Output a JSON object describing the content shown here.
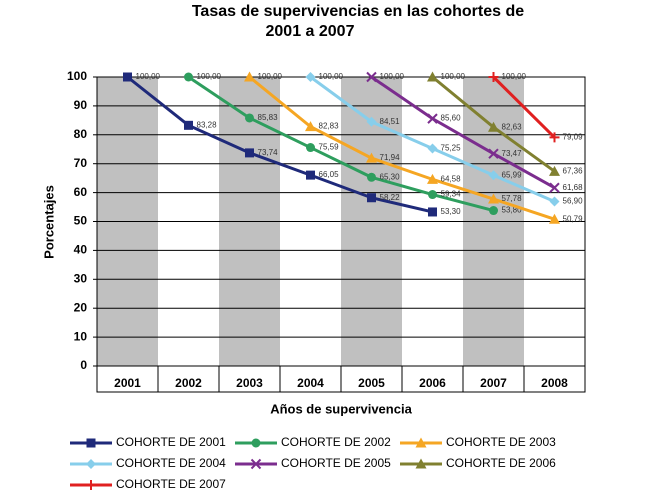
{
  "chart_data": {
    "type": "line",
    "title": [
      "Tasas de supervivencias en las cohortes de",
      "2001 a 2007"
    ],
    "xlabel": "Años de supervivencia",
    "ylabel": "Porcentajes",
    "categories": [
      "2001",
      "2002",
      "2003",
      "2004",
      "2005",
      "2006",
      "2007",
      "2008"
    ],
    "ylim": [
      0,
      100
    ],
    "yticks": [
      0,
      10,
      20,
      30,
      40,
      50,
      60,
      70,
      80,
      90,
      100
    ],
    "grid": true,
    "legend": "bottom",
    "series": [
      {
        "name": "COHORTE DE 2001",
        "color": "#1f2a7a",
        "marker": "square",
        "values": [
          100,
          83.28,
          73.74,
          66.05,
          58.22,
          53.3,
          null,
          null
        ],
        "value_labels": [
          "100,00",
          "83,28",
          "73,74",
          "66,05",
          "58,22",
          "53,30",
          null,
          null
        ]
      },
      {
        "name": "COHORTE DE 2002",
        "color": "#2e9e5e",
        "marker": "circle",
        "values": [
          null,
          100,
          85.83,
          75.59,
          65.3,
          59.34,
          53.8,
          null
        ],
        "value_labels": [
          null,
          "100,00",
          "85,83",
          "75,59",
          "65,30",
          "59,34",
          "53,80",
          null
        ]
      },
      {
        "name": "COHORTE DE 2003",
        "color": "#f5a623",
        "marker": "triangle",
        "values": [
          null,
          null,
          100,
          82.83,
          71.94,
          64.58,
          57.78,
          50.79
        ],
        "value_labels": [
          null,
          null,
          "100,00",
          "82,83",
          "71,94",
          "64,58",
          "57,78",
          "50,79"
        ]
      },
      {
        "name": "COHORTE DE 2004",
        "color": "#87ceeb",
        "marker": "diamond",
        "values": [
          null,
          null,
          null,
          100,
          84.51,
          75.25,
          65.99,
          56.9
        ],
        "value_labels": [
          null,
          null,
          null,
          "100,00",
          "84,51",
          "75,25",
          "65,99",
          "56,90"
        ]
      },
      {
        "name": "COHORTE DE 2005",
        "color": "#7b2d8e",
        "marker": "x",
        "values": [
          null,
          null,
          null,
          null,
          100,
          85.6,
          73.47,
          61.68
        ],
        "value_labels": [
          null,
          null,
          null,
          null,
          "100,00",
          "85,60",
          "73,47",
          "61,68"
        ]
      },
      {
        "name": "COHORTE DE 2006",
        "color": "#808030",
        "marker": "triangle",
        "values": [
          null,
          null,
          null,
          null,
          null,
          100,
          82.63,
          67.36
        ],
        "value_labels": [
          null,
          null,
          null,
          null,
          null,
          "100,00",
          "82,63",
          "67,36"
        ]
      },
      {
        "name": "COHORTE DE 2007",
        "color": "#e02020",
        "marker": "plus",
        "values": [
          null,
          null,
          null,
          null,
          null,
          null,
          100,
          79.09
        ],
        "value_labels": [
          null,
          null,
          null,
          null,
          null,
          null,
          "100,00",
          "79,09"
        ]
      }
    ]
  }
}
